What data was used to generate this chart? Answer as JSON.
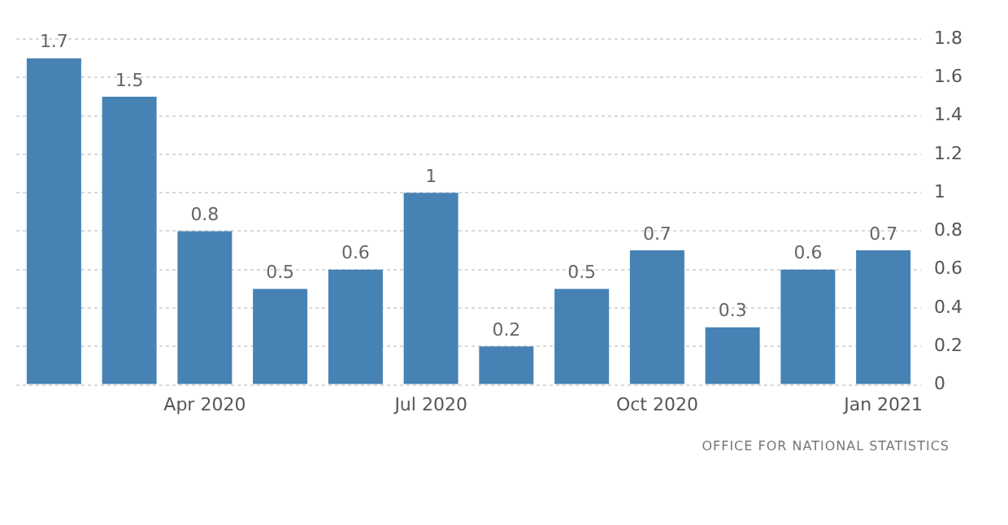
{
  "chart_data": {
    "type": "bar",
    "categories": [
      null,
      null,
      "Apr 2020",
      null,
      null,
      "Jul 2020",
      null,
      null,
      "Oct 2020",
      null,
      null,
      "Jan 2021"
    ],
    "values": [
      1.7,
      1.5,
      0.8,
      0.5,
      0.6,
      1,
      0.2,
      0.5,
      0.7,
      0.3,
      0.6,
      0.7
    ],
    "color": "#4682b4",
    "ylim": [
      0,
      1.8
    ],
    "yticks": [
      0,
      0.2,
      0.4,
      0.6,
      0.8,
      1,
      1.2,
      1.4,
      1.6,
      1.8
    ],
    "grid": "y",
    "data_labels": true,
    "legend": false,
    "annotations": [
      "OFFICE FOR NATIONAL STATISTICS"
    ]
  }
}
